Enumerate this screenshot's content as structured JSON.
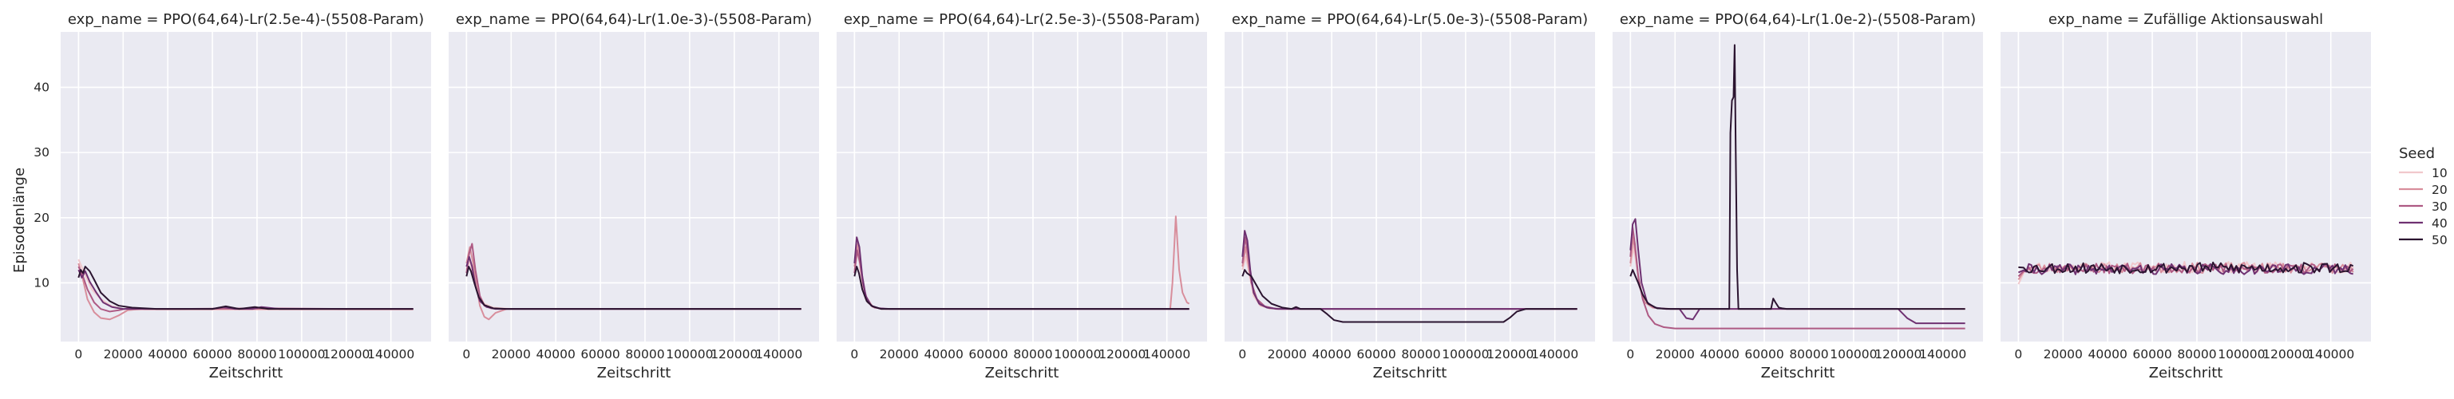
{
  "chart_data": {
    "type": "line",
    "xlabel": "Zeitschritt",
    "ylabel": "Episodenlänge",
    "xlim": [
      -8000,
      158000
    ],
    "ylim": [
      1,
      48.5
    ],
    "x_ticks": [
      0,
      20000,
      40000,
      60000,
      80000,
      100000,
      120000,
      140000
    ],
    "y_ticks": [
      10,
      20,
      30,
      40
    ],
    "grid": true,
    "legend": {
      "title": "Seed",
      "placement": "right",
      "entries": [
        "10",
        "20",
        "30",
        "40",
        "50"
      ]
    },
    "series_colors": {
      "10": "#f1c8cc",
      "20": "#d88e9c",
      "30": "#ae5a84",
      "40": "#6f3272",
      "50": "#2b1430"
    },
    "panels": [
      {
        "title": "exp_name = PPO(64,64)-Lr(2.5e-4)-(5508-Param)",
        "series": [
          {
            "name": "10",
            "x": [
              0,
              3000,
              6000,
              10000,
              15000,
              20000,
              25000,
              40000,
              80000,
              120000,
              150000
            ],
            "y": [
              13.6,
              11.2,
              9.0,
              7.5,
              6.4,
              6.0,
              5.9,
              5.9,
              5.9,
              5.9,
              5.9
            ]
          },
          {
            "name": "20",
            "x": [
              0,
              2000,
              4000,
              7000,
              10000,
              14000,
              18000,
              22000,
              28000,
              40000,
              80000,
              120000,
              150000
            ],
            "y": [
              13.0,
              10.5,
              7.5,
              5.5,
              4.6,
              4.4,
              5.0,
              5.8,
              6.0,
              6.0,
              6.0,
              6.0,
              6.0
            ]
          },
          {
            "name": "30",
            "x": [
              0,
              2000,
              4000,
              7000,
              10000,
              14000,
              18000,
              22000,
              30000,
              45000,
              80000,
              120000,
              150000
            ],
            "y": [
              12.5,
              11.0,
              9.0,
              7.0,
              6.0,
              5.6,
              5.8,
              6.1,
              6.0,
              6.0,
              6.1,
              6.0,
              6.0
            ]
          },
          {
            "name": "40",
            "x": [
              0,
              1500,
              3000,
              5000,
              8000,
              11000,
              15000,
              20000,
              30000,
              60000,
              65000,
              70000,
              78000,
              82000,
              90000,
              120000,
              150000
            ],
            "y": [
              12.0,
              10.8,
              11.8,
              10.2,
              8.5,
              7.0,
              6.3,
              6.0,
              6.0,
              6.0,
              6.3,
              6.0,
              6.0,
              6.3,
              6.0,
              6.0,
              6.0
            ]
          },
          {
            "name": "50",
            "x": [
              0,
              1000,
              2000,
              3000,
              5000,
              7000,
              10000,
              14000,
              18000,
              24000,
              35000,
              60000,
              66000,
              72000,
              79000,
              85000,
              100000,
              120000,
              150000
            ],
            "y": [
              10.8,
              12.0,
              11.5,
              12.5,
              11.8,
              10.5,
              8.5,
              7.2,
              6.5,
              6.2,
              6.0,
              6.0,
              6.4,
              6.0,
              6.3,
              6.0,
              6.0,
              6.0,
              6.0
            ]
          }
        ]
      },
      {
        "title": "exp_name = PPO(64,64)-Lr(1.0e-3)-(5508-Param)",
        "series": [
          {
            "name": "10",
            "x": [
              0,
              1500,
              3000,
              5000,
              8000,
              12000,
              20000,
              80000,
              150000
            ],
            "y": [
              12.0,
              13.5,
              11.0,
              8.5,
              6.8,
              6.2,
              6.0,
              6.0,
              6.0
            ]
          },
          {
            "name": "20",
            "x": [
              0,
              1500,
              3000,
              4500,
              6000,
              8000,
              10000,
              13000,
              18000,
              25000,
              80000,
              150000
            ],
            "y": [
              13.0,
              15.5,
              13.0,
              9.5,
              6.5,
              4.8,
              4.4,
              5.4,
              6.0,
              6.0,
              6.0,
              6.0
            ]
          },
          {
            "name": "30",
            "x": [
              0,
              1200,
              2500,
              4000,
              6000,
              8000,
              11000,
              15000,
              25000,
              80000,
              150000
            ],
            "y": [
              11.5,
              14.5,
              16.0,
              12.0,
              8.0,
              6.5,
              6.1,
              6.0,
              6.0,
              6.0,
              6.0
            ]
          },
          {
            "name": "40",
            "x": [
              0,
              1200,
              2500,
              4000,
              6000,
              9000,
              13000,
              20000,
              80000,
              150000
            ],
            "y": [
              12.5,
              14.0,
              12.5,
              9.5,
              7.2,
              6.3,
              6.0,
              6.0,
              6.0,
              6.0
            ]
          },
          {
            "name": "50",
            "x": [
              0,
              1000,
              2000,
              3500,
              5500,
              8000,
              12000,
              18000,
              80000,
              150000
            ],
            "y": [
              11.0,
              12.5,
              11.8,
              10.0,
              7.8,
              6.6,
              6.1,
              6.0,
              6.0,
              6.0
            ]
          }
        ]
      },
      {
        "title": "exp_name = PPO(64,64)-Lr(2.5e-3)-(5508-Param)",
        "series": [
          {
            "name": "10",
            "x": [
              0,
              1500,
              3000,
              5000,
              8000,
              12000,
              20000,
              80000,
              150000
            ],
            "y": [
              12.0,
              15.0,
              11.0,
              7.5,
              6.3,
              6.0,
              6.0,
              6.0,
              6.0
            ]
          },
          {
            "name": "20",
            "x": [
              0,
              1500,
              3000,
              5000,
              8000,
              12000,
              20000,
              80000,
              141500,
              142500,
              144000,
              145500,
              147000,
              149000,
              150000
            ],
            "y": [
              12.5,
              16.0,
              12.0,
              8.0,
              6.4,
              6.0,
              6.0,
              6.0,
              6.0,
              10.0,
              20.2,
              12.0,
              8.5,
              7.0,
              6.8
            ]
          },
          {
            "name": "30",
            "x": [
              0,
              1200,
              2500,
              4000,
              6000,
              9000,
              14000,
              20000,
              80000,
              150000
            ],
            "y": [
              11.5,
              15.0,
              13.0,
              9.5,
              7.0,
              6.2,
              6.0,
              6.0,
              6.0,
              6.0
            ]
          },
          {
            "name": "40",
            "x": [
              0,
              1000,
              2200,
              3500,
              5000,
              7500,
              11000,
              16000,
              80000,
              150000
            ],
            "y": [
              13.0,
              17.0,
              15.5,
              11.0,
              8.0,
              6.5,
              6.1,
              6.0,
              6.0,
              6.0
            ]
          },
          {
            "name": "50",
            "x": [
              0,
              1000,
              2000,
              3500,
              5500,
              8000,
              12000,
              18000,
              80000,
              150000
            ],
            "y": [
              11.0,
              12.5,
              11.5,
              9.0,
              7.2,
              6.4,
              6.0,
              6.0,
              6.0,
              6.0
            ]
          }
        ]
      },
      {
        "title": "exp_name = PPO(64,64)-Lr(5.0e-3)-(5508-Param)",
        "series": [
          {
            "name": "10",
            "x": [
              0,
              1500,
              3000,
              5000,
              8000,
              12000,
              18000,
              40000,
              100000,
              150000
            ],
            "y": [
              12.0,
              14.0,
              11.5,
              8.0,
              6.5,
              6.1,
              6.0,
              6.0,
              6.0,
              6.0
            ]
          },
          {
            "name": "20",
            "x": [
              0,
              1500,
              3000,
              5000,
              8000,
              12000,
              18000,
              40000,
              100000,
              150000
            ],
            "y": [
              12.5,
              15.5,
              12.0,
              8.5,
              6.6,
              6.1,
              6.0,
              6.0,
              6.0,
              6.0
            ]
          },
          {
            "name": "30",
            "x": [
              0,
              1200,
              2500,
              4000,
              6500,
              10000,
              15000,
              20000,
              40000,
              100000,
              150000
            ],
            "y": [
              13.0,
              17.0,
              14.5,
              10.0,
              7.5,
              6.4,
              6.0,
              6.0,
              6.0,
              6.0,
              6.0
            ]
          },
          {
            "name": "40",
            "x": [
              0,
              1000,
              2200,
              3500,
              5000,
              7500,
              11000,
              16000,
              22000,
              40000,
              100000,
              150000
            ],
            "y": [
              14.0,
              18.0,
              16.5,
              12.0,
              8.5,
              6.8,
              6.2,
              6.0,
              6.0,
              6.0,
              6.0,
              6.0
            ]
          },
          {
            "name": "50",
            "x": [
              0,
              1000,
              2000,
              4000,
              6000,
              9000,
              13000,
              18000,
              22000,
              24000,
              26000,
              35000,
              38000,
              41000,
              45000,
              117000,
              120000,
              123000,
              127000,
              150000
            ],
            "y": [
              11.0,
              12.0,
              11.5,
              11.0,
              9.8,
              8.0,
              6.8,
              6.2,
              6.0,
              6.3,
              6.0,
              6.0,
              5.2,
              4.3,
              4.0,
              4.0,
              4.7,
              5.6,
              6.0,
              6.0
            ]
          }
        ]
      },
      {
        "title": "exp_name = PPO(64,64)-Lr(1.0e-2)-(5508-Param)",
        "series": [
          {
            "name": "10",
            "x": [
              0,
              1500,
              3000,
              5000,
              8000,
              12000,
              20000,
              80000,
              150000
            ],
            "y": [
              12.5,
              15.5,
              12.0,
              8.5,
              6.7,
              6.1,
              6.0,
              6.0,
              6.0
            ]
          },
          {
            "name": "20",
            "x": [
              0,
              1200,
              2500,
              4000,
              6500,
              10000,
              16000,
              24000,
              80000,
              150000
            ],
            "y": [
              13.0,
              17.0,
              14.0,
              9.5,
              7.0,
              6.2,
              6.0,
              6.0,
              6.0,
              6.0
            ]
          },
          {
            "name": "30",
            "x": [
              0,
              1000,
              2000,
              3500,
              5500,
              8000,
              11000,
              15000,
              20000,
              40000,
              80000,
              150000
            ],
            "y": [
              14.0,
              18.5,
              16.0,
              11.0,
              7.5,
              5.0,
              3.7,
              3.2,
              3.0,
              3.0,
              3.0,
              3.0
            ]
          },
          {
            "name": "40",
            "x": [
              0,
              1000,
              2200,
              3500,
              5000,
              7500,
              11000,
              16000,
              22000,
              25000,
              28000,
              31000,
              80000,
              120000,
              124000,
              128000,
              150000
            ],
            "y": [
              15.0,
              19.0,
              19.8,
              15.0,
              10.0,
              7.0,
              6.2,
              6.0,
              6.0,
              4.6,
              4.4,
              6.0,
              6.0,
              6.0,
              4.6,
              3.8,
              3.8
            ]
          },
          {
            "name": "50",
            "x": [
              0,
              1000,
              2000,
              3500,
              5500,
              8000,
              12000,
              18000,
              44300,
              44800,
              45500,
              46200,
              46700,
              47200,
              47800,
              48400,
              63000,
              64000,
              65000,
              66500,
              68000,
              70000,
              150000
            ],
            "y": [
              11.0,
              12.0,
              11.2,
              10.0,
              8.2,
              6.8,
              6.1,
              6.0,
              6.0,
              33.0,
              38.0,
              38.5,
              46.5,
              30.0,
              12.0,
              6.0,
              6.0,
              7.6,
              7.0,
              6.2,
              6.1,
              6.0,
              6.0
            ]
          }
        ]
      },
      {
        "title": "exp_name = Zufällige Aktionsauswahl",
        "series": [
          {
            "name": "10",
            "noise": {
              "n": 130,
              "base": 12.4,
              "amp": 0.85,
              "seed": 11,
              "start": 9.8
            }
          },
          {
            "name": "20",
            "noise": {
              "n": 130,
              "base": 12.3,
              "amp": 0.8,
              "seed": 23,
              "start": 10.5
            }
          },
          {
            "name": "30",
            "noise": {
              "n": 130,
              "base": 12.2,
              "amp": 0.75,
              "seed": 37,
              "start": 11.0
            }
          },
          {
            "name": "40",
            "noise": {
              "n": 130,
              "base": 12.1,
              "amp": 0.8,
              "seed": 41,
              "start": 11.6
            }
          },
          {
            "name": "50",
            "noise": {
              "n": 130,
              "base": 12.3,
              "amp": 0.85,
              "seed": 53,
              "start": 12.4
            }
          }
        ]
      }
    ]
  }
}
